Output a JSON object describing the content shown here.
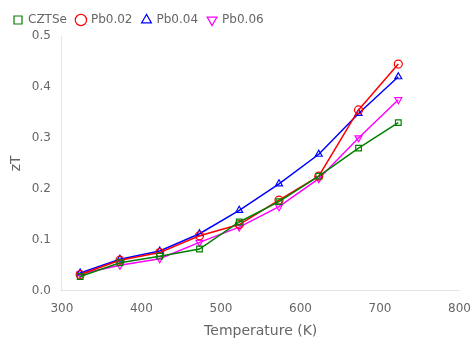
{
  "chart_data": {
    "type": "line",
    "x_label": "Temperature (K)",
    "y_label": "zT",
    "x": [
      323,
      373,
      423,
      473,
      523,
      573,
      623,
      673,
      723
    ],
    "series": [
      {
        "name": "CZTSe",
        "color": "#008000",
        "marker": "square",
        "values": [
          0.028,
          0.055,
          0.068,
          0.082,
          0.135,
          0.175,
          0.225,
          0.28,
          0.33
        ]
      },
      {
        "name": "Pb0.02",
        "color": "#ff0000",
        "marker": "circle",
        "values": [
          0.032,
          0.06,
          0.075,
          0.108,
          0.13,
          0.178,
          0.225,
          0.355,
          0.445
        ]
      },
      {
        "name": "Pb0.04",
        "color": "#0000ff",
        "marker": "triangle_up",
        "values": [
          0.035,
          0.062,
          0.078,
          0.112,
          0.158,
          0.21,
          0.268,
          0.348,
          0.42
        ]
      },
      {
        "name": "Pb0.06",
        "color": "#ff00ff",
        "marker": "triangle_down",
        "values": [
          0.033,
          0.05,
          0.063,
          0.095,
          0.125,
          0.165,
          0.22,
          0.3,
          0.375
        ]
      }
    ],
    "xlim": [
      300,
      800
    ],
    "ylim": [
      0.0,
      0.5
    ],
    "xticks": [
      300,
      400,
      500,
      600,
      700,
      800
    ],
    "yticks": [
      {
        "value": 0.0,
        "label": "0.0"
      },
      0.1,
      0.2,
      0.3,
      0.4,
      0.5
    ],
    "legend": "upper left",
    "grid": false
  }
}
